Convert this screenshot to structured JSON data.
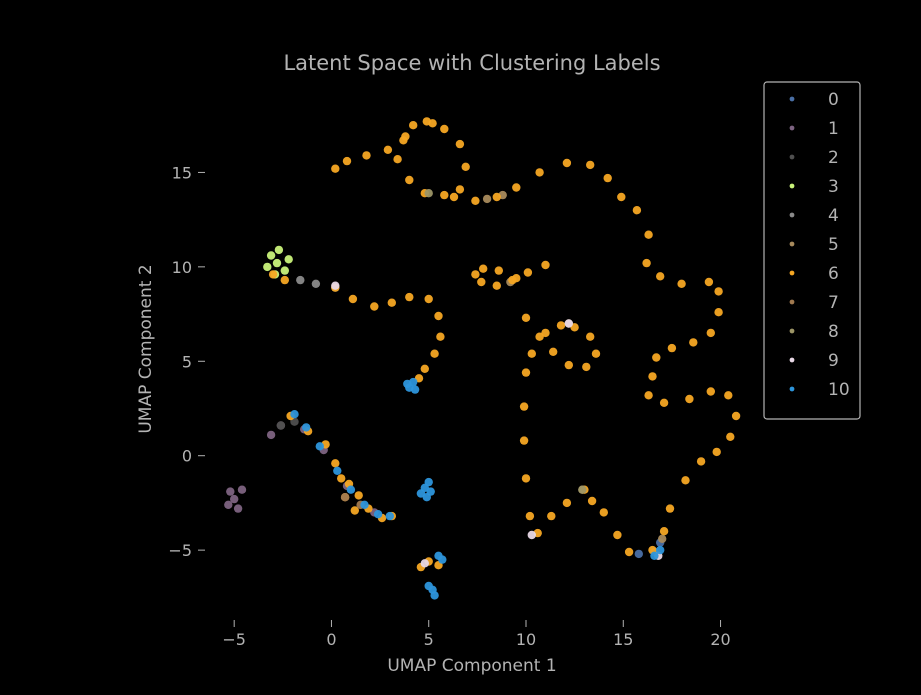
{
  "chart_data": {
    "type": "scatter",
    "title": "Latent Space with Clustering Labels",
    "xlabel": "UMAP Component 1",
    "ylabel": "UMAP Component 2",
    "xlim": [
      -6.5,
      21
    ],
    "ylim": [
      -8.7,
      19.1
    ],
    "xticks": [
      -5,
      0,
      5,
      10,
      15,
      20
    ],
    "yticks": [
      -5,
      0,
      5,
      10,
      15
    ],
    "xtick_labels": [
      "−5",
      "0",
      "5",
      "10",
      "15",
      "20"
    ],
    "ytick_labels": [
      "−5",
      "0",
      "5",
      "10",
      "15"
    ],
    "grid": false,
    "legend_position": "upper-right-outside",
    "colors": {
      "background": "#000000",
      "text": "#b3b3b3",
      "legend_border": "#b3b3b3"
    },
    "series": [
      {
        "name": "0",
        "color": "#4a6fa5",
        "points": [
          [
            15.8,
            -5.2
          ],
          [
            16.6,
            -5.1
          ],
          [
            16.9,
            -4.6
          ]
        ]
      },
      {
        "name": "1",
        "color": "#7d6381",
        "points": [
          [
            -5,
            -2.3
          ],
          [
            -4.6,
            -1.8
          ],
          [
            -5.3,
            -2.6
          ],
          [
            -4.8,
            -2.8
          ],
          [
            -5.2,
            -1.9
          ],
          [
            -2.6,
            1.6
          ],
          [
            -3.1,
            1.1
          ],
          [
            -1.4,
            1.4
          ],
          [
            -0.4,
            0.3
          ],
          [
            0.8,
            -1.6
          ],
          [
            2.2,
            -3.0
          ]
        ]
      },
      {
        "name": "2",
        "color": "#4f4f4f",
        "points": [
          [
            -2.6,
            1.6
          ],
          [
            -1.9,
            1.8
          ]
        ]
      },
      {
        "name": "3",
        "color": "#c9f27a",
        "points": [
          [
            -2.8,
            10.2
          ],
          [
            -3.1,
            10.6
          ],
          [
            -2.4,
            9.8
          ],
          [
            -2.7,
            10.9
          ],
          [
            -2.2,
            10.4
          ],
          [
            -3.3,
            10.0
          ],
          [
            -2.9,
            9.6
          ]
        ]
      },
      {
        "name": "4",
        "color": "#8a8a8a",
        "points": [
          [
            -1.6,
            9.3
          ],
          [
            -0.8,
            9.1
          ],
          [
            0.2,
            8.9
          ]
        ]
      },
      {
        "name": "5",
        "color": "#a88a5c",
        "points": [
          [
            8.0,
            13.6
          ],
          [
            8.8,
            13.8
          ],
          [
            9.2,
            9.2
          ],
          [
            12.2,
            7.0
          ],
          [
            12.9,
            -1.8
          ],
          [
            17.0,
            -4.4
          ]
        ]
      },
      {
        "name": "6",
        "color": "#f5a623",
        "points": [
          [
            0.2,
            15.2
          ],
          [
            0.8,
            15.6
          ],
          [
            1.8,
            15.9
          ],
          [
            2.9,
            16.2
          ],
          [
            3.7,
            16.7
          ],
          [
            4.2,
            17.5
          ],
          [
            4.9,
            17.7
          ],
          [
            5.8,
            17.3
          ],
          [
            6.6,
            16.5
          ],
          [
            6.9,
            15.3
          ],
          [
            6.6,
            14.1
          ],
          [
            5.8,
            13.8
          ],
          [
            4.8,
            13.9
          ],
          [
            4.0,
            14.6
          ],
          [
            3.4,
            15.7
          ],
          [
            3.8,
            16.9
          ],
          [
            5.2,
            17.6
          ],
          [
            6.3,
            13.7
          ],
          [
            7.4,
            13.5
          ],
          [
            8.5,
            13.7
          ],
          [
            9.5,
            14.2
          ],
          [
            10.7,
            15.0
          ],
          [
            12.1,
            15.5
          ],
          [
            13.3,
            15.4
          ],
          [
            14.2,
            14.7
          ],
          [
            14.9,
            13.7
          ],
          [
            15.7,
            13.0
          ],
          [
            16.3,
            11.7
          ],
          [
            16.2,
            10.2
          ],
          [
            16.9,
            9.5
          ],
          [
            18.0,
            9.1
          ],
          [
            19.4,
            9.2
          ],
          [
            19.9,
            8.7
          ],
          [
            19.9,
            7.6
          ],
          [
            19.5,
            6.5
          ],
          [
            18.6,
            6.0
          ],
          [
            17.5,
            5.7
          ],
          [
            16.7,
            5.2
          ],
          [
            16.5,
            4.2
          ],
          [
            16.3,
            3.2
          ],
          [
            17.1,
            2.8
          ],
          [
            18.4,
            3.0
          ],
          [
            19.5,
            3.4
          ],
          [
            20.4,
            3.2
          ],
          [
            20.8,
            2.1
          ],
          [
            20.5,
            1.0
          ],
          [
            19.8,
            0.2
          ],
          [
            19.0,
            -0.3
          ],
          [
            18.2,
            -1.3
          ],
          [
            17.4,
            -2.8
          ],
          [
            17.1,
            -4.0
          ],
          [
            16.5,
            -5.0
          ],
          [
            15.3,
            -5.1
          ],
          [
            14.7,
            -4.2
          ],
          [
            14.0,
            -3.0
          ],
          [
            13.4,
            -2.4
          ],
          [
            13.0,
            -1.8
          ],
          [
            12.1,
            -2.5
          ],
          [
            11.3,
            -3.2
          ],
          [
            10.6,
            -4.1
          ],
          [
            10.2,
            -3.2
          ],
          [
            10.0,
            -1.2
          ],
          [
            9.9,
            0.8
          ],
          [
            9.9,
            2.6
          ],
          [
            10.0,
            4.4
          ],
          [
            10.3,
            5.4
          ],
          [
            11.0,
            6.5
          ],
          [
            11.8,
            6.9
          ],
          [
            12.5,
            6.8
          ],
          [
            13.3,
            6.3
          ],
          [
            13.6,
            5.4
          ],
          [
            13.1,
            4.7
          ],
          [
            12.2,
            4.8
          ],
          [
            11.4,
            5.5
          ],
          [
            10.7,
            6.3
          ],
          [
            10.0,
            7.3
          ],
          [
            9.5,
            9.4
          ],
          [
            8.6,
            9.8
          ],
          [
            7.8,
            9.9
          ],
          [
            7.4,
            9.6
          ],
          [
            7.7,
            9.2
          ],
          [
            8.5,
            9.0
          ],
          [
            9.3,
            9.3
          ],
          [
            10.1,
            9.7
          ],
          [
            11.0,
            10.1
          ],
          [
            0.2,
            8.9
          ],
          [
            1.1,
            8.3
          ],
          [
            2.2,
            7.9
          ],
          [
            3.1,
            8.1
          ],
          [
            4.0,
            8.4
          ],
          [
            5.0,
            8.3
          ],
          [
            5.5,
            7.4
          ],
          [
            5.6,
            6.3
          ],
          [
            5.3,
            5.4
          ],
          [
            4.8,
            4.6
          ],
          [
            4.5,
            4.1
          ],
          [
            -2.1,
            2.1
          ],
          [
            -1.2,
            1.3
          ],
          [
            -0.3,
            0.6
          ],
          [
            0.2,
            -0.4
          ],
          [
            0.5,
            -1.2
          ],
          [
            0.9,
            -1.5
          ],
          [
            1.4,
            -2.1
          ],
          [
            1.9,
            -2.8
          ],
          [
            2.6,
            -3.3
          ],
          [
            3.1,
            -3.2
          ],
          [
            -3.0,
            9.6
          ],
          [
            -2.4,
            9.3
          ],
          [
            0.7,
            -2.2
          ],
          [
            1.2,
            -2.9
          ],
          [
            5.0,
            -5.6
          ],
          [
            4.6,
            -5.9
          ],
          [
            5.5,
            -5.8
          ]
        ]
      },
      {
        "name": "7",
        "color": "#a0794f",
        "points": [
          [
            0.7,
            -2.2
          ],
          [
            1.5,
            -2.6
          ]
        ]
      },
      {
        "name": "8",
        "color": "#9c9566",
        "points": [
          [
            5.0,
            13.9
          ],
          [
            12.9,
            -1.8
          ]
        ]
      },
      {
        "name": "9",
        "color": "#e8d8e6",
        "points": [
          [
            0.2,
            9.0
          ],
          [
            10.3,
            -4.2
          ],
          [
            12.2,
            7.0
          ],
          [
            16.8,
            -5.3
          ],
          [
            4.8,
            -5.7
          ]
        ]
      },
      {
        "name": "10",
        "color": "#2d95db",
        "points": [
          [
            4.0,
            3.6
          ],
          [
            4.3,
            3.5
          ],
          [
            3.9,
            3.8
          ],
          [
            4.2,
            3.9
          ],
          [
            4.8,
            -1.7
          ],
          [
            5.1,
            -1.9
          ],
          [
            4.6,
            -2.0
          ],
          [
            5.0,
            -1.4
          ],
          [
            4.9,
            -2.2
          ],
          [
            5.2,
            -7.1
          ],
          [
            5.0,
            -6.9
          ],
          [
            5.3,
            -7.4
          ],
          [
            5.7,
            -5.5
          ],
          [
            5.5,
            -5.3
          ],
          [
            -1.9,
            2.2
          ],
          [
            -1.3,
            1.5
          ],
          [
            -0.6,
            0.5
          ],
          [
            0.3,
            -0.8
          ],
          [
            1.0,
            -1.8
          ],
          [
            1.7,
            -2.6
          ],
          [
            2.4,
            -3.1
          ],
          [
            3.0,
            -3.2
          ],
          [
            16.9,
            -5.0
          ],
          [
            16.6,
            -5.3
          ]
        ]
      }
    ]
  }
}
